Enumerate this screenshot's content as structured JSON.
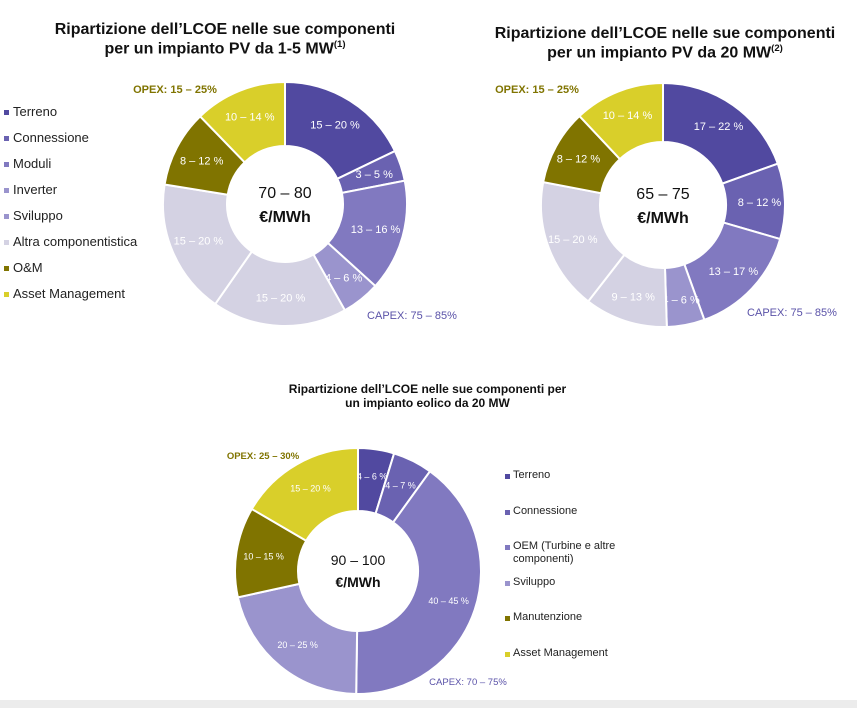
{
  "colors": {
    "terreno": "#5149a0",
    "connessione": "#6a62b1",
    "moduli": "#8179c0",
    "inverter": "#9a94cd",
    "sviluppo": "#d4d2e3",
    "altra": "#d4d2e3",
    "om": "#807400",
    "asset": "#d9cf2a",
    "opex_text": "#807400",
    "capex_text": "#5a52a8"
  },
  "chart_data": [
    {
      "type": "pie",
      "title_main": "Ripartizione dell’LCOE nelle sue componenti",
      "title_line2": "per un impianto PV da 1-5 MW",
      "title_sup": "(1)",
      "center_line1": "70 – 80",
      "center_line2": "€/MWh",
      "opex_label": "OPEX: 15 – 25%",
      "capex_label": "CAPEX: 75 – 85%",
      "slices": [
        {
          "key": "terreno",
          "label": "15 – 20 %",
          "value": 17.5
        },
        {
          "key": "connessione",
          "label": "3 – 5 %",
          "value": 4
        },
        {
          "key": "moduli",
          "label": "13 – 16 %",
          "value": 14.5
        },
        {
          "key": "inverter",
          "label": "4 – 6 %",
          "value": 5
        },
        {
          "key": "sviluppo",
          "label": "15 – 20 %",
          "value": 17.5
        },
        {
          "key": "altra",
          "label": "15 – 20 %",
          "value": 17.5
        },
        {
          "key": "om",
          "label": "8 – 12 %",
          "value": 10
        },
        {
          "key": "asset",
          "label": "10 – 14 %",
          "value": 12
        }
      ]
    },
    {
      "type": "pie",
      "title_main": "Ripartizione dell’LCOE nelle sue componenti",
      "title_line2": "per un impianto PV da 20 MW",
      "title_sup": "(2)",
      "center_line1": "65 – 75",
      "center_line2": "€/MWh",
      "opex_label": "OPEX: 15 – 25%",
      "capex_label": "CAPEX: 75 – 85%",
      "slices": [
        {
          "key": "terreno",
          "label": "17 – 22 %",
          "value": 19.5
        },
        {
          "key": "connessione",
          "label": "8 – 12 %",
          "value": 10
        },
        {
          "key": "moduli",
          "label": "13 – 17 %",
          "value": 15
        },
        {
          "key": "inverter",
          "label": "4 – 6 %",
          "value": 5
        },
        {
          "key": "sviluppo",
          "label": "9 – 13 %",
          "value": 11
        },
        {
          "key": "altra",
          "label": "15 – 20 %",
          "value": 17.5
        },
        {
          "key": "om",
          "label": "8 – 12 %",
          "value": 10
        },
        {
          "key": "asset",
          "label": "10 – 14 %",
          "value": 12
        }
      ]
    },
    {
      "type": "pie",
      "title_main": "Ripartizione dell’LCOE nelle sue componenti per",
      "title_line2": "un impianto eolico da 20 MW",
      "title_sup": "",
      "center_line1": "90 – 100",
      "center_line2": "€/MWh",
      "opex_label": "OPEX: 25 – 30%",
      "capex_label": "CAPEX: 70 – 75%",
      "slices": [
        {
          "key": "terreno",
          "label": "4 – 6 %",
          "value": 5
        },
        {
          "key": "connessione",
          "label": "4 – 7 %",
          "value": 5.5
        },
        {
          "key": "moduli",
          "label": "40 – 45 %",
          "value": 42.5
        },
        {
          "key": "inverter",
          "label": "20 – 25 %",
          "value": 22.5
        },
        {
          "key": "om",
          "label": "10 – 15 %",
          "value": 12.5
        },
        {
          "key": "asset",
          "label": "15 – 20 %",
          "value": 17.5
        }
      ]
    }
  ],
  "legend_pv": [
    {
      "label": "Terreno",
      "color_key": "terreno"
    },
    {
      "label": "Connessione",
      "color_key": "connessione"
    },
    {
      "label": "Moduli",
      "color_key": "moduli"
    },
    {
      "label": "Inverter",
      "color_key": "inverter"
    },
    {
      "label": "Sviluppo",
      "color_key": "inverter"
    },
    {
      "label": "Altra componentistica",
      "color_key": "sviluppo"
    },
    {
      "label": "O&M",
      "color_key": "om"
    },
    {
      "label": "Asset Management",
      "color_key": "asset"
    }
  ],
  "legend_wind": [
    {
      "label": "Terreno",
      "color_key": "terreno"
    },
    {
      "label": "Connessione",
      "color_key": "connessione"
    },
    {
      "label": "OEM (Turbine e altre",
      "label2": "componenti)",
      "color_key": "moduli"
    },
    {
      "label": "Sviluppo",
      "color_key": "inverter"
    },
    {
      "label": "Manutenzione",
      "color_key": "om"
    },
    {
      "label": "Asset Management",
      "color_key": "asset"
    }
  ]
}
